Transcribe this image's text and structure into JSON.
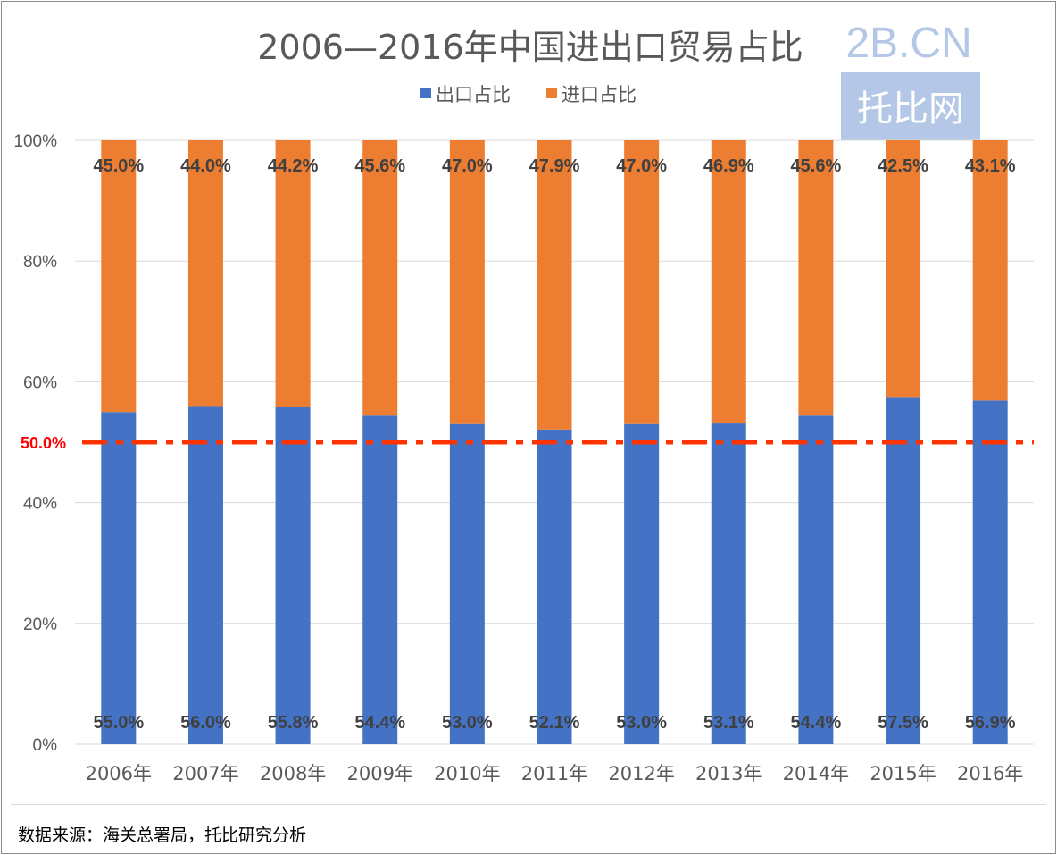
{
  "chart_data": {
    "type": "bar",
    "stacked": true,
    "title": "2006—2016年中国进出口贸易占比",
    "categories": [
      "2006年",
      "2007年",
      "2008年",
      "2009年",
      "2010年",
      "2011年",
      "2012年",
      "2013年",
      "2014年",
      "2015年",
      "2016年"
    ],
    "series": [
      {
        "name": "出口占比",
        "color": "#4472c4",
        "values": [
          55.0,
          56.0,
          55.8,
          54.4,
          53.0,
          52.1,
          53.0,
          53.1,
          54.4,
          57.5,
          56.9
        ],
        "labels": [
          "55.0%",
          "56.0%",
          "55.8%",
          "54.4%",
          "53.0%",
          "52.1%",
          "53.0%",
          "53.1%",
          "54.4%",
          "57.5%",
          "56.9%"
        ]
      },
      {
        "name": "进口占比",
        "color": "#ed7d31",
        "values": [
          45.0,
          44.0,
          44.2,
          45.6,
          47.0,
          47.9,
          47.0,
          46.9,
          45.6,
          42.5,
          43.1
        ],
        "labels": [
          "45.0%",
          "44.0%",
          "44.2%",
          "45.6%",
          "47.0%",
          "47.9%",
          "47.0%",
          "46.9%",
          "45.6%",
          "42.5%",
          "43.1%"
        ]
      }
    ],
    "yticks": [
      "0%",
      "20%",
      "40%",
      "60%",
      "80%",
      "100%"
    ],
    "ylim": [
      0,
      100
    ],
    "reference_line": {
      "value": 50,
      "label": "50.0%",
      "color": "#ff3300"
    },
    "legend": "top"
  },
  "watermark": {
    "top": "2B.CN",
    "box": "托比网"
  },
  "source": "数据来源：海关总署局，托比研究分析"
}
